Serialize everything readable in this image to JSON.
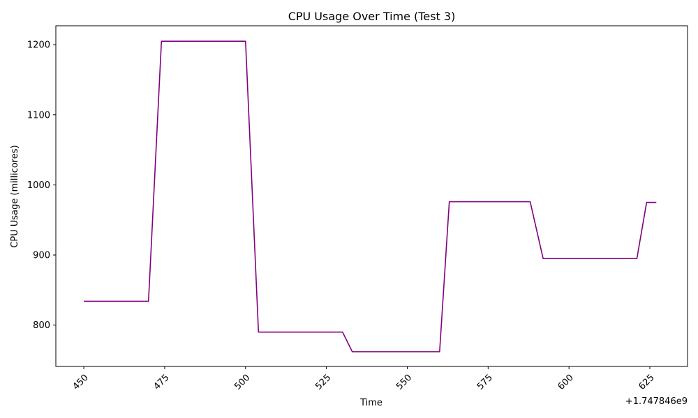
{
  "chart_data": {
    "type": "line",
    "title": "CPU Usage Over Time (Test 3)",
    "xlabel": "Time",
    "ylabel": "CPU Usage (millicores)",
    "x_offset_label": "+1.747846e9",
    "xlim": [
      441.35,
      636.65
    ],
    "ylim": [
      741,
      1227
    ],
    "x_ticks": [
      450,
      475,
      500,
      525,
      550,
      575,
      600,
      625
    ],
    "y_ticks": [
      800,
      900,
      1000,
      1100,
      1200
    ],
    "grid": false,
    "series": [
      {
        "color": "#800080",
        "x": [
          450,
          470,
          474,
          500,
          504,
          530,
          533,
          560,
          563,
          588,
          592,
          621,
          624,
          627
        ],
        "y": [
          834,
          834,
          1205,
          1205,
          790,
          790,
          762,
          762,
          976,
          976,
          895,
          895,
          975,
          975
        ]
      }
    ]
  }
}
